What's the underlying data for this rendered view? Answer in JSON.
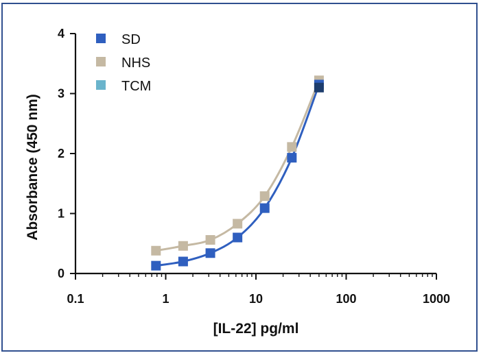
{
  "chart_data": {
    "type": "scatter",
    "xlabel": "[IL-22] pg/ml",
    "ylabel": "Absorbance (450 nm)",
    "xscale": "log",
    "xlim": [
      0.1,
      1000
    ],
    "ylim": [
      0,
      4
    ],
    "x_ticks": [
      "0.1",
      "1",
      "10",
      "100",
      "1000"
    ],
    "y_ticks": [
      "0",
      "1",
      "2",
      "3",
      "4"
    ],
    "legend_position": "top-left",
    "grid": false,
    "x": [
      0.78,
      1.56,
      3.125,
      6.25,
      12.5,
      25,
      50
    ],
    "series": [
      {
        "name": "SD",
        "color": "#2f5fbf",
        "values": [
          0.13,
          0.2,
          0.34,
          0.6,
          1.09,
          1.93,
          3.15
        ],
        "fit_line": true
      },
      {
        "name": "NHS",
        "color": "#c5b9a3",
        "values": [
          0.38,
          0.46,
          0.56,
          0.83,
          1.29,
          2.11,
          3.22
        ],
        "fit_line": true
      },
      {
        "name": "TCM",
        "color": "#6ab4cc",
        "values": [],
        "fit_line": false
      }
    ],
    "extra_points": [
      {
        "x": 50,
        "y": 3.1,
        "color": "#1d3d6d"
      }
    ]
  }
}
